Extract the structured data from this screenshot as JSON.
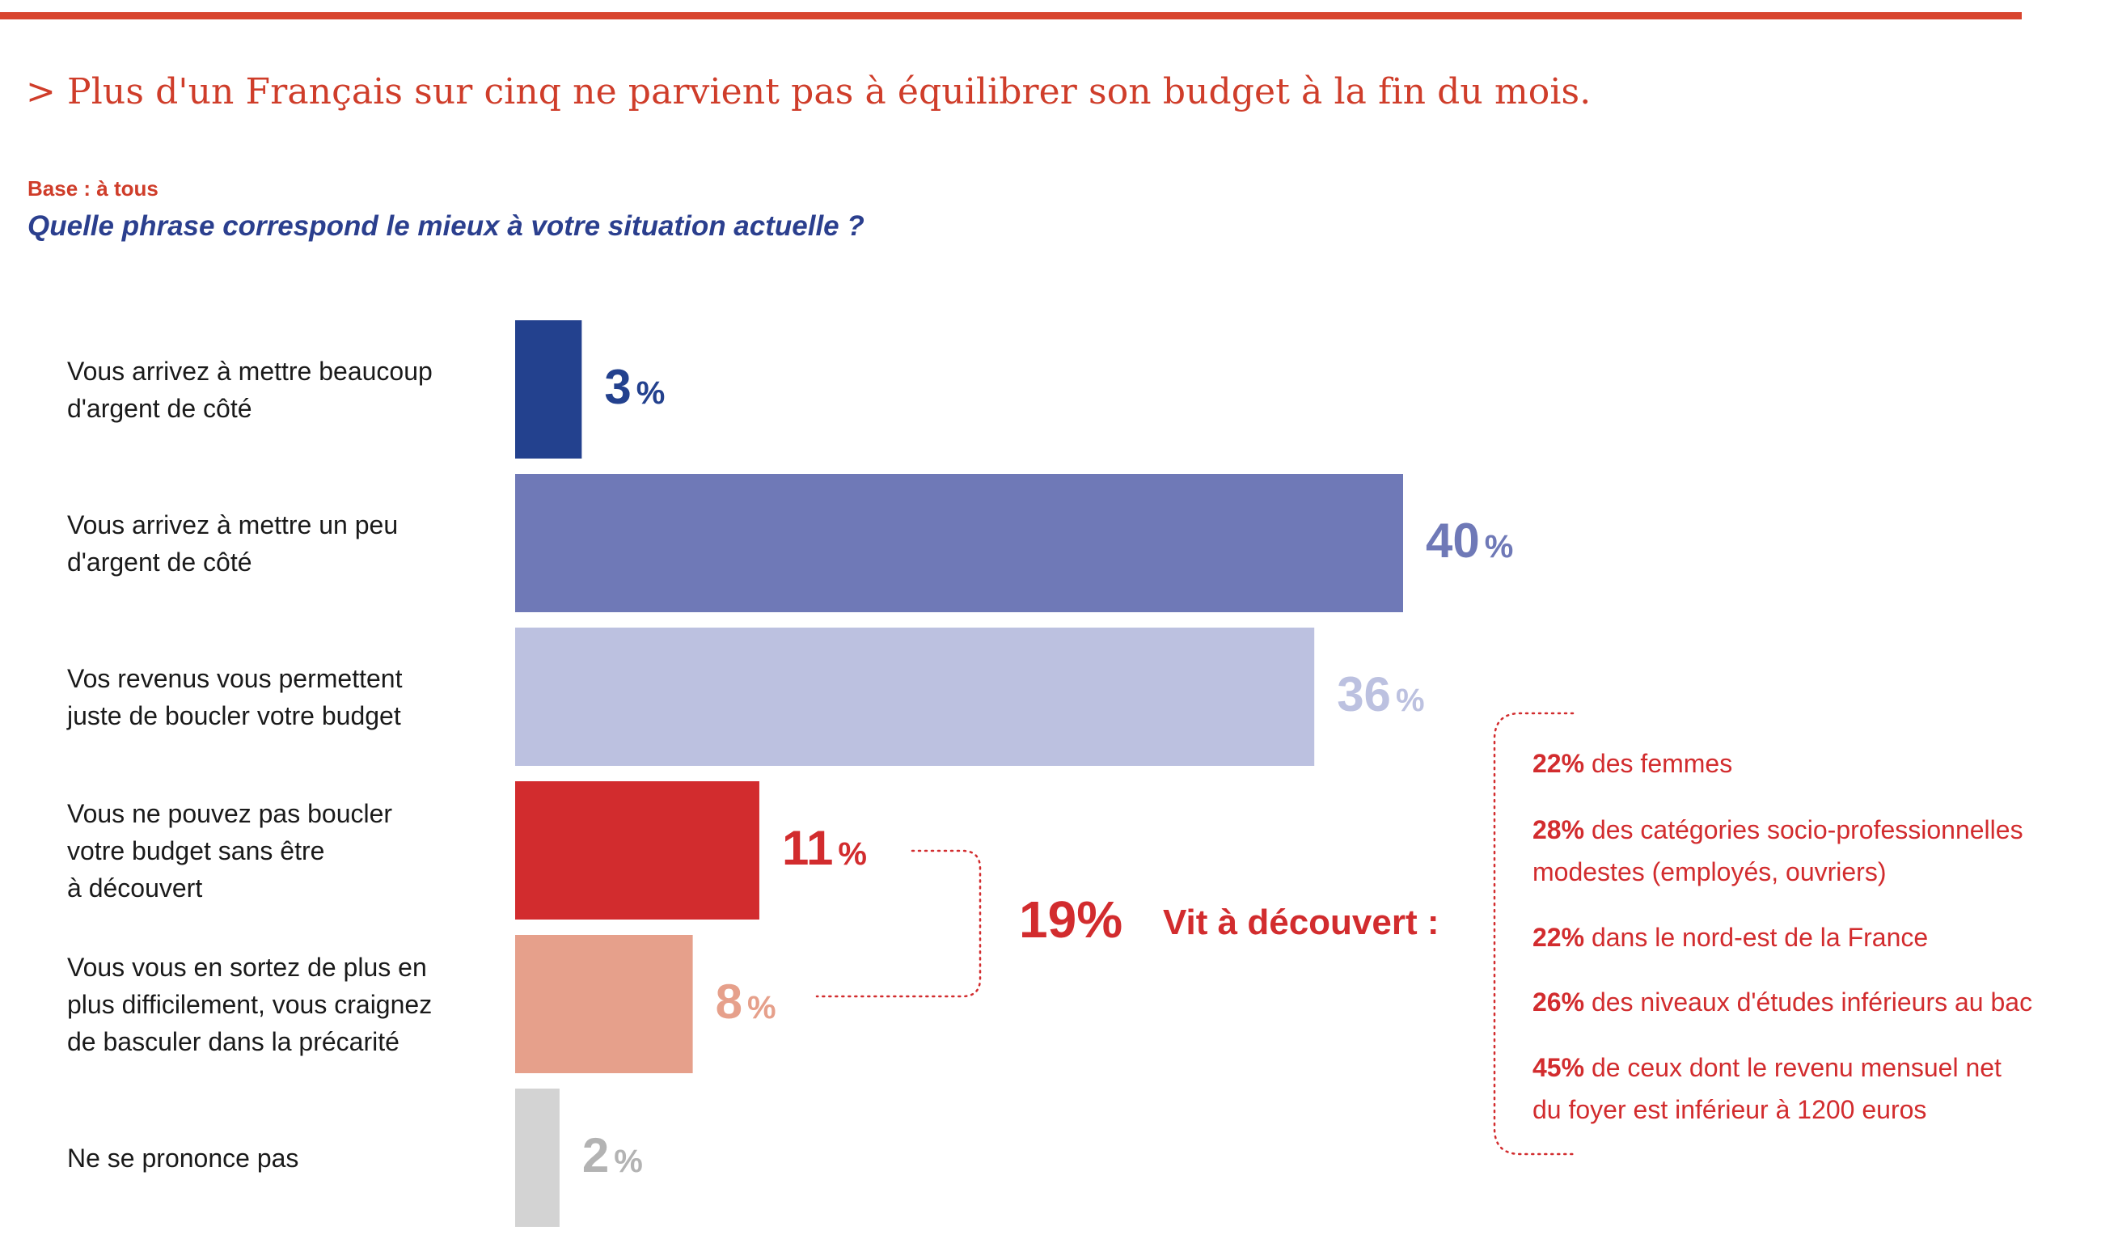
{
  "header": {
    "title": "> Plus d'un Français sur cinq ne parvient pas à équilibrer son budget à la fin du mois.",
    "base": "Base : à tous",
    "question": "Quelle phrase correspond le mieux à votre situation actuelle ?"
  },
  "chart_data": {
    "type": "bar",
    "orientation": "horizontal",
    "categories": [
      "Vous arrivez à mettre beaucoup d'argent de côté",
      "Vous arrivez à mettre un peu d'argent de côté",
      "Vos revenus vous permettent juste de boucler votre budget",
      "Vous ne pouvez pas boucler votre budget sans être à découvert",
      "Vous vous en sortez de plus en plus difficilement, vous craignez de basculer dans la précarité",
      "Ne se prononce pas"
    ],
    "category_lines": [
      [
        "Vous arrivez à mettre beaucoup",
        "d'argent de côté"
      ],
      [
        "Vous arrivez à mettre un peu",
        "d'argent de côté"
      ],
      [
        "Vos revenus vous permettent",
        "juste de boucler votre budget"
      ],
      [
        "Vous ne pouvez pas boucler",
        "votre budget sans être",
        "à découvert"
      ],
      [
        "Vous vous en sortez de plus en",
        "plus difficilement, vous craignez",
        "de basculer dans la précarité"
      ],
      [
        "Ne se prononce pas"
      ]
    ],
    "values": [
      3,
      40,
      36,
      11,
      8,
      2
    ],
    "value_labels": [
      "3",
      "40",
      "36",
      "11",
      "8",
      "2"
    ],
    "unit": "%",
    "colors": [
      "#23418e",
      "#6f79b7",
      "#bcc1e0",
      "#d22c2e",
      "#e6a08b",
      "#d3d3d3"
    ],
    "label_colors": [
      "#23418e",
      "#6f79b7",
      "#bcc1e0",
      "#d22c2e",
      "#e6a08b",
      "#b3b3b3"
    ]
  },
  "summary": {
    "value": "19%",
    "label": "Vit à découvert :",
    "color": "#d22c2e"
  },
  "annotations": [
    {
      "pct": "22%",
      "lines": [
        "des femmes"
      ]
    },
    {
      "pct": "28%",
      "lines": [
        "des catégories socio-professionnelles",
        "modestes (employés, ouvriers)"
      ]
    },
    {
      "pct": "22%",
      "lines": [
        "dans le nord-est de la France"
      ]
    },
    {
      "pct": "26%",
      "lines": [
        "des niveaux d'études inférieurs au bac"
      ]
    },
    {
      "pct": "45%",
      "lines": [
        "de ceux dont le revenu mensuel net",
        "du foyer est inférieur à 1200 euros"
      ]
    }
  ]
}
